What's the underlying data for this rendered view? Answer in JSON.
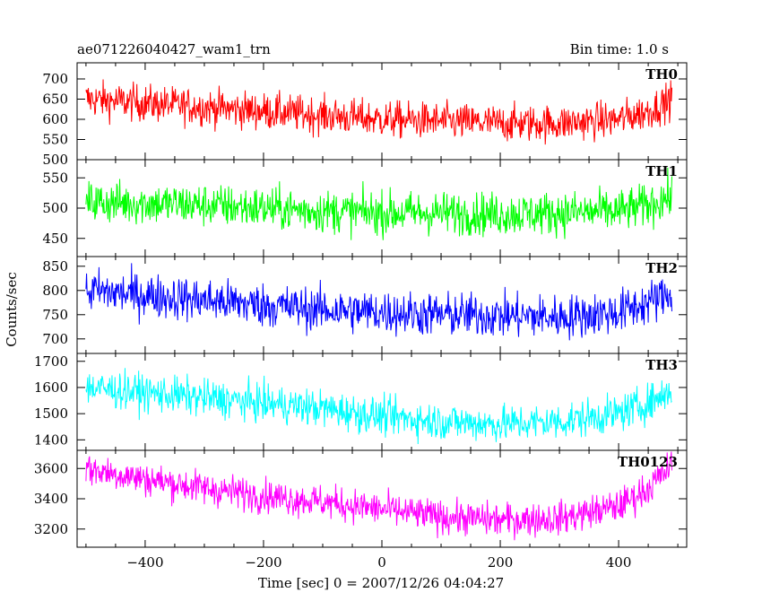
{
  "header": {
    "title": "ae071226040427_wam1_trn",
    "bin_time": "Bin time: 1.0 s"
  },
  "chart_data": {
    "type": "line",
    "title": "ae071226040427_wam1_trn",
    "subtitle": "Bin time: 1.0 s",
    "xlabel": "Time [sec] 0 = 2007/12/26 04:04:27",
    "ylabel": "Counts/sec",
    "xlim": [
      -515,
      515
    ],
    "x_ticks": [
      -400,
      -200,
      0,
      200,
      400
    ],
    "x_tick_labels": [
      "−400",
      "−200",
      "0",
      "200",
      "400"
    ],
    "x_range": [
      -500,
      490
    ],
    "grid": false,
    "panels": [
      {
        "name": "TH0",
        "color": "#ff0000",
        "ylim": [
          500,
          740
        ],
        "y_ticks": [
          500,
          550,
          600,
          650,
          700
        ],
        "trend": {
          "x": [
            -500,
            -400,
            -300,
            -200,
            -100,
            0,
            100,
            200,
            300,
            400,
            450,
            490
          ],
          "y": [
            650,
            640,
            630,
            620,
            610,
            600,
            595,
            590,
            590,
            600,
            620,
            650
          ]
        },
        "noise_amplitude": 45
      },
      {
        "name": "TH1",
        "color": "#00ff00",
        "ylim": [
          420,
          580
        ],
        "y_ticks": [
          450,
          500,
          550
        ],
        "trend": {
          "x": [
            -500,
            -400,
            -300,
            -200,
            -100,
            0,
            100,
            200,
            300,
            400,
            450,
            490
          ],
          "y": [
            510,
            508,
            505,
            500,
            495,
            492,
            492,
            490,
            492,
            495,
            505,
            520
          ]
        },
        "noise_amplitude": 35
      },
      {
        "name": "TH2",
        "color": "#0000ff",
        "ylim": [
          670,
          870
        ],
        "y_ticks": [
          700,
          750,
          800,
          850
        ],
        "trend": {
          "x": [
            -500,
            -400,
            -300,
            -200,
            -100,
            0,
            100,
            200,
            300,
            400,
            450,
            490
          ],
          "y": [
            800,
            790,
            780,
            770,
            760,
            755,
            750,
            748,
            745,
            755,
            775,
            795
          ]
        },
        "noise_amplitude": 45
      },
      {
        "name": "TH3",
        "color": "#00ffff",
        "ylim": [
          1360,
          1730
        ],
        "y_ticks": [
          1400,
          1500,
          1600,
          1700
        ],
        "trend": {
          "x": [
            -500,
            -400,
            -300,
            -200,
            -100,
            0,
            100,
            200,
            300,
            400,
            450,
            490
          ],
          "y": [
            1600,
            1580,
            1560,
            1540,
            1520,
            1490,
            1470,
            1460,
            1470,
            1500,
            1540,
            1590
          ]
        },
        "noise_amplitude": 70
      },
      {
        "name": "TH0123",
        "color": "#ff00ff",
        "ylim": [
          3080,
          3720
        ],
        "y_ticks": [
          3200,
          3400,
          3600
        ],
        "trend": {
          "x": [
            -500,
            -400,
            -300,
            -200,
            -100,
            0,
            100,
            200,
            300,
            400,
            450,
            490
          ],
          "y": [
            3600,
            3530,
            3470,
            3420,
            3380,
            3330,
            3280,
            3260,
            3270,
            3350,
            3470,
            3620
          ]
        },
        "noise_amplitude": 110
      }
    ]
  }
}
